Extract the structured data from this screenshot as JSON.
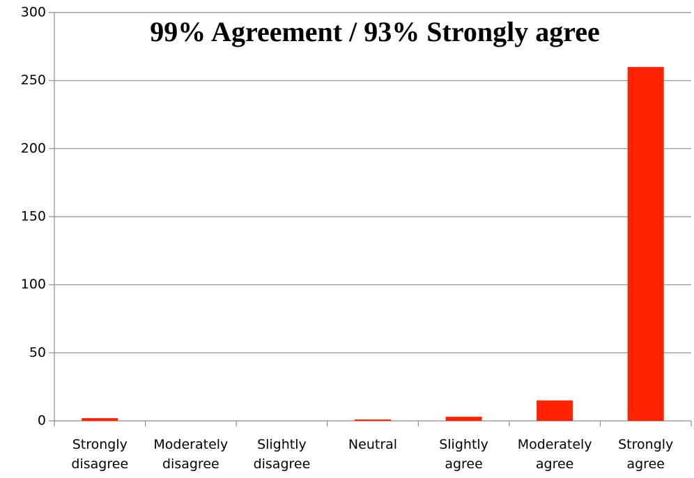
{
  "chart_data": {
    "type": "bar",
    "title": "99% Agreement / 93% Strongly agree",
    "categories": [
      "Strongly disagree",
      "Moderately disagree",
      "Slightly disagree",
      "Neutral",
      "Slightly agree",
      "Moderately agree",
      "Strongly agree"
    ],
    "values": [
      2,
      0,
      0,
      1,
      3,
      15,
      260
    ],
    "color": "#ff2200",
    "ylim": [
      0,
      300
    ],
    "yticks": [
      0,
      50,
      100,
      150,
      200,
      250,
      300
    ],
    "grid": true
  }
}
